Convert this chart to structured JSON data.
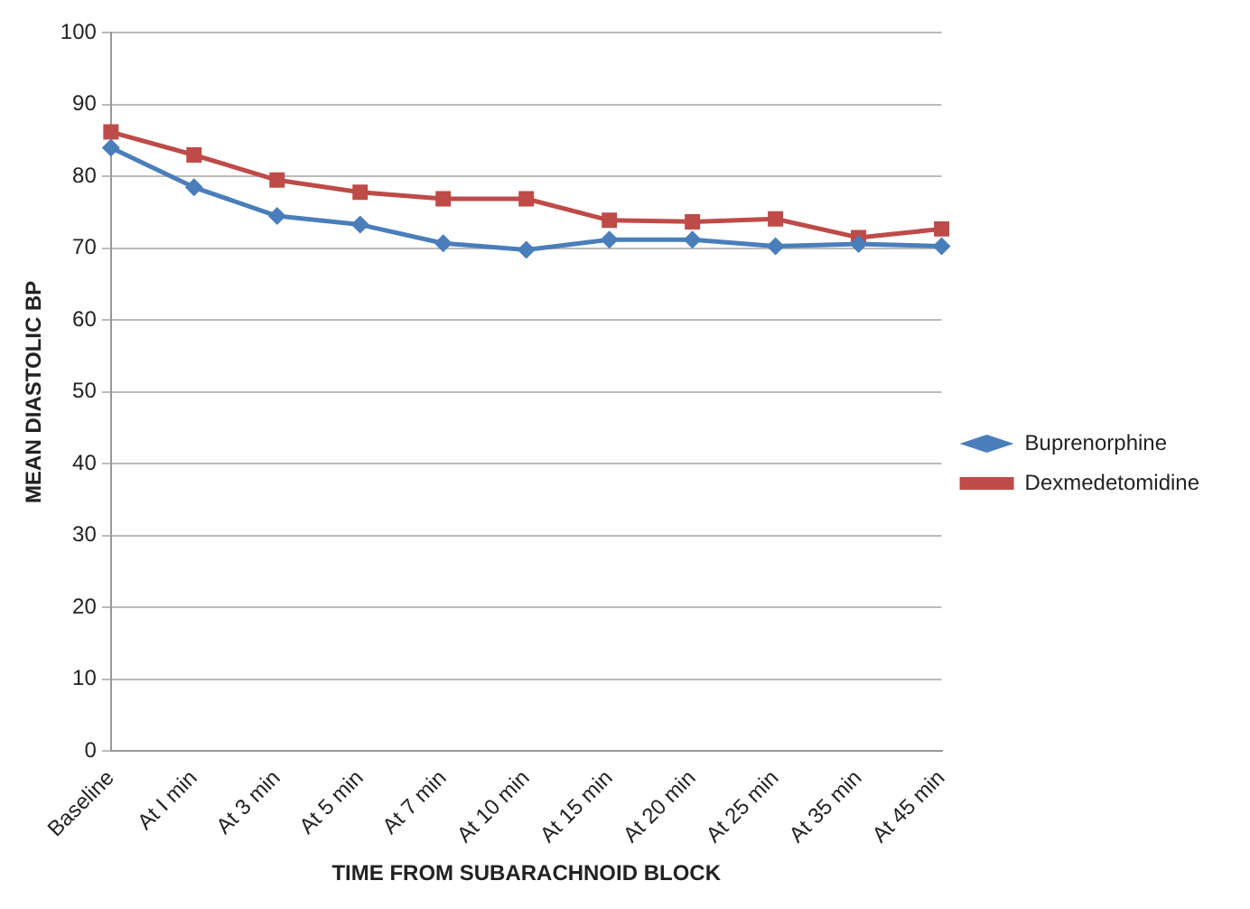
{
  "chart_data": {
    "type": "line",
    "xlabel": "TIME FROM SUBARACHNOID BLOCK",
    "ylabel": "MEAN DIASTOLIC BP",
    "categories": [
      "Baseline",
      "At I min",
      "At 3 min",
      "At 5 min",
      "At 7 min",
      "At 10 min",
      "At 15 min",
      "At 20 min",
      "At 25 min",
      "At 35 min",
      "At 45 min"
    ],
    "series": [
      {
        "name": "Buprenorphine",
        "color": "#4a7ebb",
        "marker": "diamond",
        "values": [
          84,
          78.5,
          74.5,
          73.3,
          70.7,
          69.8,
          71.2,
          71.2,
          70.3,
          70.6,
          70.3
        ]
      },
      {
        "name": "Dexmedetomidine",
        "color": "#be4b48",
        "marker": "square",
        "values": [
          86.2,
          83,
          79.5,
          77.8,
          76.9,
          76.9,
          73.9,
          73.7,
          74.1,
          71.5,
          72.7
        ]
      }
    ],
    "ylim": [
      0,
      100
    ],
    "yticks": [
      0,
      10,
      20,
      30,
      40,
      50,
      60,
      70,
      80,
      90,
      100
    ],
    "grid": "y",
    "legend": "right"
  }
}
